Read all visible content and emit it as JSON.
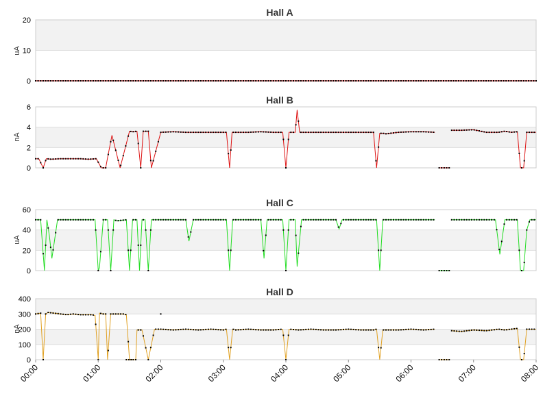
{
  "chart_data": [
    {
      "type": "line",
      "title": "Hall A",
      "ylabel": "uA",
      "yticks": [
        "0",
        "10",
        "20"
      ],
      "ylim": [
        0,
        20
      ],
      "color": "#cc0000",
      "series": [
        {
          "segments": [
            {
              "x": [
                0,
                8
              ],
              "y": [
                0,
                0
              ]
            }
          ]
        }
      ]
    },
    {
      "type": "line",
      "title": "Hall B",
      "ylabel": "nA",
      "yticks": [
        "0",
        "2",
        "4",
        "6"
      ],
      "ylim": [
        0,
        6
      ],
      "color": "#dd1111",
      "series": [
        {
          "segments": [
            {
              "x": [
                0.0,
                0.05,
                0.12,
                0.17,
                0.25,
                0.4,
                0.55,
                0.7,
                0.85,
                0.97,
                1.05,
                1.12,
                1.15,
                1.22,
                1.35,
                1.5,
                1.55,
                1.62,
                1.68,
                1.72,
                1.8,
                1.85,
                2.0,
                2.2,
                2.4,
                2.6,
                2.8,
                3.0,
                3.05,
                3.1,
                3.14,
                3.2,
                3.4,
                3.6,
                3.8,
                3.95,
                4.0,
                4.05,
                4.15,
                4.18,
                4.22,
                4.4,
                4.6,
                4.8,
                5.0,
                5.2,
                5.4,
                5.45,
                5.5,
                5.55,
                5.6,
                5.8,
                6.0,
                6.2,
                6.38
              ],
              "y": [
                0.9,
                0.9,
                0.0,
                0.9,
                0.85,
                0.9,
                0.9,
                0.9,
                0.85,
                0.9,
                0.0,
                0.0,
                1.0,
                3.2,
                0.0,
                3.6,
                3.55,
                3.6,
                0.0,
                3.6,
                3.6,
                0.0,
                3.5,
                3.55,
                3.5,
                3.5,
                3.5,
                3.5,
                3.5,
                0.0,
                3.5,
                3.5,
                3.5,
                3.55,
                3.5,
                3.5,
                0.0,
                3.5,
                3.5,
                5.7,
                3.5,
                3.5,
                3.5,
                3.5,
                3.5,
                3.5,
                3.5,
                0.0,
                3.4,
                3.4,
                3.35,
                3.5,
                3.55,
                3.55,
                3.5
              ]
            },
            {
              "x": [
                6.45,
                6.62
              ],
              "y": [
                0.0,
                0.0
              ]
            },
            {
              "x": [
                6.65,
                6.8,
                7.0,
                7.2,
                7.4,
                7.5,
                7.6,
                7.7,
                7.75,
                7.8,
                7.85,
                8.0
              ],
              "y": [
                3.7,
                3.7,
                3.75,
                3.5,
                3.5,
                3.6,
                3.5,
                3.55,
                0.0,
                0.0,
                3.5,
                3.5
              ]
            }
          ]
        }
      ]
    },
    {
      "type": "line",
      "title": "Hall C",
      "ylabel": "uA",
      "yticks": [
        "0",
        "20",
        "40",
        "60"
      ],
      "ylim": [
        0,
        60
      ],
      "color": "#22dd22",
      "series": [
        {
          "segments": [
            {
              "x": [
                0.0,
                0.08,
                0.14,
                0.18,
                0.22,
                0.26,
                0.35,
                0.5,
                0.7,
                0.9,
                0.95,
                1.0,
                1.02,
                1.08,
                1.15,
                1.2,
                1.25,
                1.3,
                1.45,
                1.5,
                1.55,
                1.62,
                1.66,
                1.7,
                1.75,
                1.8,
                1.85,
                1.9,
                2.0,
                2.2,
                2.4,
                2.45,
                2.52,
                2.6,
                2.8,
                3.0,
                3.05,
                3.1,
                3.15,
                3.2,
                3.4,
                3.55,
                3.6,
                3.65,
                3.7,
                3.8,
                3.95,
                4.0,
                4.05,
                4.15,
                4.18,
                4.25,
                4.4,
                4.6,
                4.8,
                4.85,
                4.9,
                5.0,
                5.2,
                5.4,
                5.45,
                5.5,
                5.55,
                5.6,
                5.8,
                6.0,
                6.2,
                6.38
              ],
              "y": [
                50,
                50,
                0,
                50,
                34,
                12,
                50,
                50,
                50,
                50,
                50,
                0,
                3,
                50,
                50,
                0,
                50,
                49,
                50,
                0,
                50,
                50,
                0,
                50,
                50,
                0,
                50,
                50,
                50,
                50,
                50,
                29,
                50,
                50,
                50,
                50,
                50,
                0,
                50,
                50,
                50,
                50,
                50,
                12,
                50,
                50,
                50,
                0,
                50,
                50,
                4,
                50,
                50,
                50,
                50,
                41,
                50,
                50,
                50,
                50,
                50,
                0,
                50,
                50,
                50,
                50,
                50,
                50
              ]
            },
            {
              "x": [
                6.45,
                6.62
              ],
              "y": [
                0,
                0
              ]
            },
            {
              "x": [
                6.65,
                6.8,
                7.0,
                7.2,
                7.35,
                7.42,
                7.5,
                7.7,
                7.75,
                7.8,
                7.85,
                7.9,
                8.0
              ],
              "y": [
                50,
                50,
                50,
                50,
                50,
                16,
                50,
                50,
                0,
                0,
                40,
                50,
                50
              ]
            }
          ]
        }
      ]
    },
    {
      "type": "line",
      "title": "Hall D",
      "ylabel": "nA",
      "yticks": [
        "0",
        "100",
        "200",
        "300",
        "400"
      ],
      "ylim": [
        0,
        400
      ],
      "color": "#e0a020",
      "series": [
        {
          "segments": [
            {
              "x": [
                0.0,
                0.08,
                0.12,
                0.16,
                0.2,
                0.3,
                0.4,
                0.5,
                0.6,
                0.7,
                0.8,
                0.9,
                0.95,
                1.0,
                1.02,
                1.08,
                1.12,
                1.15,
                1.2,
                1.3,
                1.4,
                1.45,
                1.5,
                1.55,
                1.6,
                1.62,
                1.7,
                1.8,
                1.9,
                2.0
              ],
              "y": [
                300,
                305,
                0,
                300,
                310,
                305,
                300,
                295,
                300,
                295,
                295,
                295,
                290,
                0,
                305,
                300,
                300,
                0,
                300,
                300,
                300,
                295,
                0,
                0,
                0,
                195,
                195,
                0,
                200,
                200
              ]
            },
            {
              "x": [
                1.45,
                1.55
              ],
              "y": [
                0,
                0
              ]
            },
            {
              "x": [
                2.0,
                2.2,
                2.4,
                2.6,
                2.8,
                3.0,
                3.05,
                3.1,
                3.15,
                3.2,
                3.4,
                3.6,
                3.8,
                3.95,
                4.0,
                4.05,
                4.2,
                4.4,
                4.6,
                4.8,
                5.0,
                5.2,
                5.4,
                5.45,
                5.5,
                5.55,
                5.6,
                5.8,
                6.0,
                6.2,
                6.38
              ],
              "y": [
                200,
                195,
                200,
                195,
                200,
                195,
                200,
                0,
                200,
                195,
                200,
                195,
                195,
                200,
                0,
                200,
                195,
                200,
                195,
                195,
                200,
                195,
                195,
                200,
                0,
                195,
                195,
                195,
                200,
                195,
                200
              ]
            },
            {
              "x": [
                6.45,
                6.62
              ],
              "y": [
                0,
                0
              ]
            },
            {
              "x": [
                6.65,
                6.8,
                7.0,
                7.2,
                7.4,
                7.5,
                7.6,
                7.7,
                7.75,
                7.8,
                7.85,
                8.0
              ],
              "y": [
                190,
                185,
                195,
                190,
                200,
                195,
                200,
                205,
                0,
                0,
                200,
                200
              ]
            }
          ]
        }
      ]
    }
  ],
  "xaxis": {
    "ticks": [
      "00:00",
      "01:00",
      "02:00",
      "03:00",
      "04:00",
      "05:00",
      "06:00",
      "07:00",
      "08:00"
    ],
    "range": [
      0,
      8
    ]
  },
  "colors": {
    "band": "#f2f2f2",
    "gridline": "#dddddd",
    "frame": "#cccccc",
    "marker": "#000000"
  }
}
